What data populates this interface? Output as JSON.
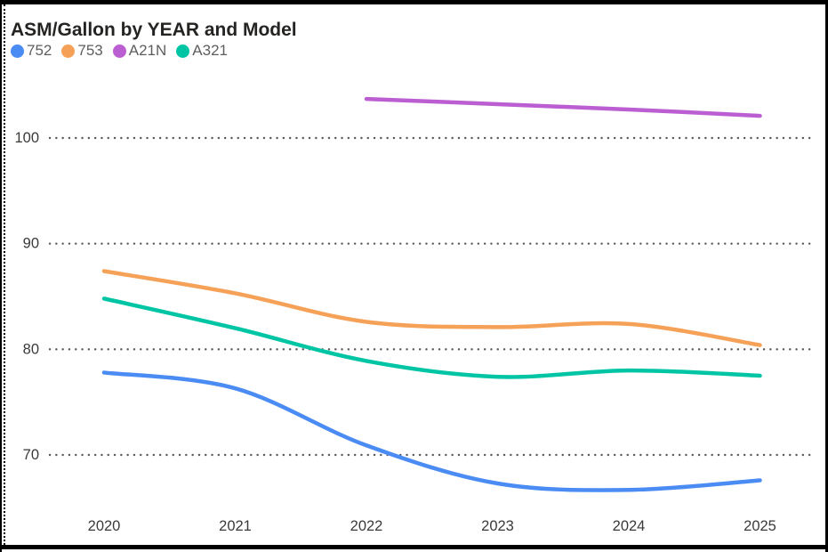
{
  "chart_data": {
    "type": "line",
    "title": "ASM/Gallon by YEAR and Model",
    "x": [
      2020,
      2021,
      2022,
      2023,
      2024,
      2025
    ],
    "xticklabels": [
      "2020",
      "2021",
      "2022",
      "2023",
      "2024",
      "2025"
    ],
    "yticks": [
      70,
      80,
      90,
      100
    ],
    "ylim": [
      64,
      106
    ],
    "grid": "horizontal-dotted",
    "legend_position": "top-left",
    "series": [
      {
        "name": "752",
        "color": "#4A8CF4",
        "values": [
          77.8,
          76.3,
          70.9,
          67.3,
          66.7,
          67.6
        ]
      },
      {
        "name": "753",
        "color": "#F6A158",
        "values": [
          87.4,
          85.3,
          82.6,
          82.1,
          82.4,
          80.4
        ]
      },
      {
        "name": "A21N",
        "color": "#BB5ED2",
        "values": [
          null,
          null,
          103.7,
          103.2,
          102.7,
          102.1
        ]
      },
      {
        "name": "A321",
        "color": "#00C5A5",
        "values": [
          84.8,
          82.0,
          78.9,
          77.4,
          78.0,
          77.5
        ]
      }
    ]
  },
  "frame": {
    "style": "black dashed selection frame"
  }
}
